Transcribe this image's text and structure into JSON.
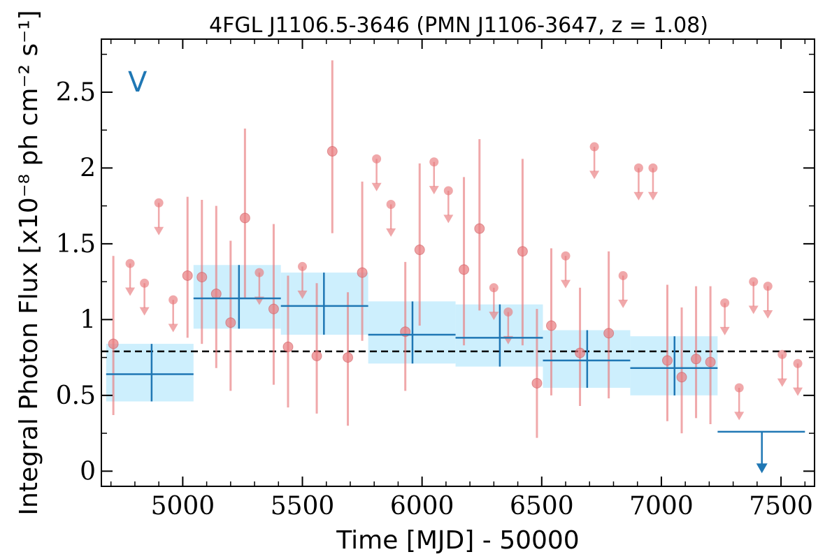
{
  "chart_data": {
    "type": "scatter",
    "title": "4FGL J1106.5-3646 (PMN J1106-3647, z = 1.08)",
    "xlabel": "Time [MJD] - 50000",
    "ylabel": "Integral Photon Flux [x10⁻⁸ ph cm⁻² s⁻¹]",
    "band_label": "V",
    "xlim": [
      4660,
      7640
    ],
    "ylim": [
      -0.1,
      2.85
    ],
    "xticks": [
      {
        "value": 5000,
        "label": "5000"
      },
      {
        "value": 5500,
        "label": "5500"
      },
      {
        "value": 6000,
        "label": "6000"
      },
      {
        "value": 6500,
        "label": "6500"
      },
      {
        "value": 7000,
        "label": "7000"
      },
      {
        "value": 7500,
        "label": "7500"
      }
    ],
    "yticks": [
      {
        "value": 0,
        "label": "0"
      },
      {
        "value": 0.5,
        "label": "0.5"
      },
      {
        "value": 1,
        "label": "1"
      },
      {
        "value": 1.5,
        "label": "1.5"
      },
      {
        "value": 2,
        "label": "2"
      },
      {
        "value": 2.5,
        "label": "2.5"
      }
    ],
    "reference_line": {
      "y": 0.79,
      "style": "dashed",
      "color": "#000000"
    },
    "colors": {
      "fine": "#e87a7d",
      "coarse": "#1f77b4",
      "coarse_band": "#cdeffd"
    },
    "series": [
      {
        "role": "fine-bins",
        "points": [
          {
            "x": 4710,
            "y": 0.84,
            "lo": 0.37,
            "hi": 1.42
          },
          {
            "x": 4780,
            "y": 1.37,
            "ul": true
          },
          {
            "x": 4840,
            "y": 1.24,
            "ul": true
          },
          {
            "x": 4900,
            "y": 1.77,
            "ul": true
          },
          {
            "x": 4960,
            "y": 1.13,
            "ul": true
          },
          {
            "x": 5020,
            "y": 1.29,
            "lo": 0.88,
            "hi": 1.81
          },
          {
            "x": 5080,
            "y": 1.28,
            "lo": 0.84,
            "hi": 1.79
          },
          {
            "x": 5140,
            "y": 1.17,
            "lo": 0.68,
            "hi": 1.75
          },
          {
            "x": 5200,
            "y": 0.98,
            "lo": 0.53,
            "hi": 1.52
          },
          {
            "x": 5260,
            "y": 1.67,
            "lo": 1.14,
            "hi": 2.26
          },
          {
            "x": 5320,
            "y": 1.31,
            "ul": true
          },
          {
            "x": 5380,
            "y": 1.07,
            "lo": 0.57,
            "hi": 1.63
          },
          {
            "x": 5440,
            "y": 0.82,
            "lo": 0.42,
            "hi": 1.29
          },
          {
            "x": 5500,
            "y": 1.35,
            "ul": true
          },
          {
            "x": 5560,
            "y": 0.76,
            "lo": 0.38,
            "hi": 1.24
          },
          {
            "x": 5625,
            "y": 2.11,
            "lo": 1.57,
            "hi": 2.71
          },
          {
            "x": 5690,
            "y": 0.75,
            "lo": 0.3,
            "hi": 1.18
          },
          {
            "x": 5750,
            "y": 1.31,
            "lo": 0.86,
            "hi": 1.91
          },
          {
            "x": 5810,
            "y": 2.06,
            "ul": true
          },
          {
            "x": 5870,
            "y": 1.76,
            "ul": true
          },
          {
            "x": 5930,
            "y": 0.92,
            "lo": 0.53,
            "hi": 1.38
          },
          {
            "x": 5990,
            "y": 1.46,
            "lo": 0.96,
            "hi": 2.03
          },
          {
            "x": 6050,
            "y": 2.04,
            "ul": true
          },
          {
            "x": 6110,
            "y": 1.85,
            "ul": true
          },
          {
            "x": 6175,
            "y": 1.33,
            "lo": 0.83,
            "hi": 1.94
          },
          {
            "x": 6240,
            "y": 1.6,
            "lo": 1.06,
            "hi": 2.19
          },
          {
            "x": 6300,
            "y": 1.21,
            "ul": true
          },
          {
            "x": 6360,
            "y": 1.05,
            "ul": true
          },
          {
            "x": 6420,
            "y": 1.45,
            "lo": 0.83,
            "hi": 2.06
          },
          {
            "x": 6480,
            "y": 0.58,
            "lo": 0.22,
            "hi": 1.07
          },
          {
            "x": 6540,
            "y": 0.96,
            "lo": 0.5,
            "hi": 1.47
          },
          {
            "x": 6600,
            "y": 1.42,
            "ul": true
          },
          {
            "x": 6660,
            "y": 0.78,
            "lo": 0.43,
            "hi": 1.21
          },
          {
            "x": 6720,
            "y": 2.14,
            "ul": true
          },
          {
            "x": 6780,
            "y": 0.91,
            "lo": 0.48,
            "hi": 1.45
          },
          {
            "x": 6840,
            "y": 1.29,
            "ul": true
          },
          {
            "x": 6905,
            "y": 2.0,
            "ul": true
          },
          {
            "x": 6965,
            "y": 2.0,
            "ul": true
          },
          {
            "x": 7025,
            "y": 0.73,
            "lo": 0.33,
            "hi": 1.23
          },
          {
            "x": 7085,
            "y": 0.62,
            "lo": 0.25,
            "hi": 1.08
          },
          {
            "x": 7145,
            "y": 0.74,
            "lo": 0.35,
            "hi": 1.22
          },
          {
            "x": 7205,
            "y": 0.72,
            "lo": 0.31,
            "hi": 1.22
          },
          {
            "x": 7265,
            "y": 1.11,
            "ul": true
          },
          {
            "x": 7325,
            "y": 0.55,
            "ul": true
          },
          {
            "x": 7385,
            "y": 1.25,
            "ul": true
          },
          {
            "x": 7445,
            "y": 1.22,
            "ul": true
          },
          {
            "x": 7505,
            "y": 0.77,
            "ul": true
          },
          {
            "x": 7570,
            "y": 0.71,
            "ul": true
          }
        ]
      },
      {
        "role": "coarse-bins",
        "bins": [
          {
            "x0": 4680,
            "x1": 5045,
            "xc": 4870,
            "y": 0.64,
            "lo": 0.46,
            "hi": 0.84
          },
          {
            "x0": 5045,
            "x1": 5410,
            "xc": 5235,
            "y": 1.14,
            "lo": 0.94,
            "hi": 1.36
          },
          {
            "x0": 5410,
            "x1": 5775,
            "xc": 5590,
            "y": 1.09,
            "lo": 0.9,
            "hi": 1.31
          },
          {
            "x0": 5775,
            "x1": 6140,
            "xc": 5960,
            "y": 0.9,
            "lo": 0.71,
            "hi": 1.12
          },
          {
            "x0": 6140,
            "x1": 6505,
            "xc": 6325,
            "y": 0.88,
            "lo": 0.69,
            "hi": 1.1
          },
          {
            "x0": 6505,
            "x1": 6870,
            "xc": 6690,
            "y": 0.73,
            "lo": 0.55,
            "hi": 0.93
          },
          {
            "x0": 6870,
            "x1": 7235,
            "xc": 7055,
            "y": 0.68,
            "lo": 0.5,
            "hi": 0.89
          },
          {
            "x0": 7235,
            "x1": 7600,
            "xc": 7420,
            "y": 0.26,
            "ul": true
          }
        ]
      }
    ]
  }
}
